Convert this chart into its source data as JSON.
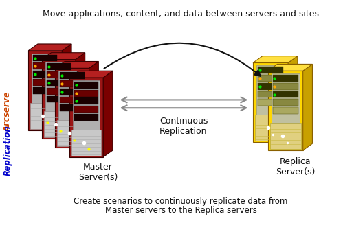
{
  "title_top": "Move applications, content, and data between servers and sites",
  "title_bottom_line1": "Create scenarios to continuously replicate data from",
  "title_bottom_line2": "Master servers to the Replica servers",
  "label_master": "Master\nServer(s)",
  "label_replica": "Replica\nServer(s)",
  "label_continuous": "Continuous\nReplication",
  "bg_color": "#ffffff",
  "border_color": "#aaaaaa",
  "red_front": "#9B1515",
  "red_side": "#7A0000",
  "red_top": "#B52020",
  "red_slot_dark": "#2a2a2a",
  "red_slot_med": "#5a0a0a",
  "red_body_panel": "#c0c0c0",
  "yellow_front": "#FFD700",
  "yellow_side": "#C8A000",
  "yellow_top": "#FFE040",
  "yellow_slot_dark": "#404000",
  "yellow_slot_med": "#C8A000",
  "yellow_body_panel": "#c8c8c8",
  "arrow_color": "#888888",
  "curved_arrow_color": "#111111",
  "text_color": "#111111",
  "side_arcserve_color": "#cc4400",
  "side_replication_color": "#0000cc"
}
